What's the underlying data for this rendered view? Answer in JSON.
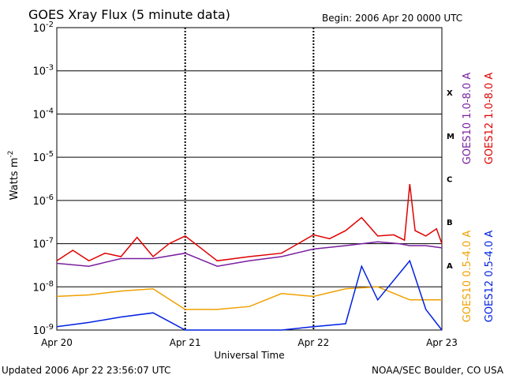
{
  "header": {
    "title": "GOES Xray Flux (5 minute data)",
    "begin": "Begin:  2006 Apr 20 0000 UTC"
  },
  "footer": {
    "updated": "Updated 2006 Apr 22 23:56:07 UTC",
    "source": "NOAA/SEC Boulder, CO USA"
  },
  "chart_data": {
    "type": "line",
    "title": "GOES Xray Flux (5 minute data)",
    "xlabel": "Universal Time",
    "ylabel": "Watts m-2",
    "y_scale": "log",
    "ylim": [
      1e-09,
      0.01
    ],
    "y_ticks": [
      {
        "base": "10",
        "exp": "-2"
      },
      {
        "base": "10",
        "exp": "-3"
      },
      {
        "base": "10",
        "exp": "-4"
      },
      {
        "base": "10",
        "exp": "-5"
      },
      {
        "base": "10",
        "exp": "-6"
      },
      {
        "base": "10",
        "exp": "-7"
      },
      {
        "base": "10",
        "exp": "-8"
      },
      {
        "base": "10",
        "exp": "-9"
      }
    ],
    "x_ticks": [
      "Apr 20",
      "Apr 21",
      "Apr 22",
      "Apr 23"
    ],
    "flare_classes": [
      "X",
      "M",
      "C",
      "B",
      "A"
    ],
    "grid": true,
    "legend_placement": "right",
    "series": [
      {
        "name": "GOES10 1.0-8.0 A",
        "color": "#7a1fa0",
        "x": [
          "2006-04-20 00:00",
          "2006-04-20 06:00",
          "2006-04-20 12:00",
          "2006-04-20 18:00",
          "2006-04-21 00:00",
          "2006-04-21 06:00",
          "2006-04-21 12:00",
          "2006-04-21 18:00",
          "2006-04-22 00:00",
          "2006-04-22 06:00",
          "2006-04-22 12:00",
          "2006-04-22 16:00",
          "2006-04-22 18:00",
          "2006-04-22 21:00",
          "2006-04-23 00:00"
        ],
        "y": [
          3.5e-08,
          3e-08,
          4.5e-08,
          4.5e-08,
          6e-08,
          3e-08,
          4e-08,
          5e-08,
          7.5e-08,
          9e-08,
          1.1e-07,
          1e-07,
          9e-08,
          9e-08,
          8e-08
        ]
      },
      {
        "name": "GOES12 1.0-8.0 A",
        "color": "#e00000",
        "x": [
          "2006-04-20 00:00",
          "2006-04-20 03:00",
          "2006-04-20 06:00",
          "2006-04-20 09:00",
          "2006-04-20 12:00",
          "2006-04-20 15:00",
          "2006-04-20 18:00",
          "2006-04-20 21:00",
          "2006-04-21 00:00",
          "2006-04-21 06:00",
          "2006-04-21 12:00",
          "2006-04-21 18:00",
          "2006-04-22 00:00",
          "2006-04-22 03:00",
          "2006-04-22 06:00",
          "2006-04-22 09:00",
          "2006-04-22 12:00",
          "2006-04-22 15:00",
          "2006-04-22 17:00",
          "2006-04-22 18:00",
          "2006-04-22 19:00",
          "2006-04-22 21:00",
          "2006-04-22 23:00",
          "2006-04-23 00:00"
        ],
        "y": [
          4e-08,
          7e-08,
          4e-08,
          6e-08,
          5e-08,
          1.4e-07,
          5e-08,
          1e-07,
          1.5e-07,
          4e-08,
          5e-08,
          6e-08,
          1.6e-07,
          1.3e-07,
          2e-07,
          4e-07,
          1.5e-07,
          1.6e-07,
          1.2e-07,
          2.4e-06,
          2e-07,
          1.5e-07,
          2.2e-07,
          1e-07
        ]
      },
      {
        "name": "GOES10 0.5-4.0 A",
        "color": "#f0a000",
        "x": [
          "2006-04-20 00:00",
          "2006-04-20 06:00",
          "2006-04-20 12:00",
          "2006-04-20 18:00",
          "2006-04-21 00:00",
          "2006-04-21 06:00",
          "2006-04-21 12:00",
          "2006-04-21 18:00",
          "2006-04-22 00:00",
          "2006-04-22 06:00",
          "2006-04-22 12:00",
          "2006-04-22 18:00",
          "2006-04-23 00:00"
        ],
        "y": [
          6e-09,
          6.5e-09,
          8e-09,
          9e-09,
          3e-09,
          3e-09,
          3.5e-09,
          7e-09,
          6e-09,
          9e-09,
          1e-08,
          5e-09,
          5e-09
        ]
      },
      {
        "name": "GOES12 0.5-4.0 A",
        "color": "#0020e0",
        "x": [
          "2006-04-20 00:00",
          "2006-04-20 06:00",
          "2006-04-20 12:00",
          "2006-04-20 18:00",
          "2006-04-21 00:00",
          "2006-04-21 06:00",
          "2006-04-21 12:00",
          "2006-04-21 18:00",
          "2006-04-22 00:00",
          "2006-04-22 06:00",
          "2006-04-22 09:00",
          "2006-04-22 12:00",
          "2006-04-22 18:00",
          "2006-04-22 21:00",
          "2006-04-23 00:00"
        ],
        "y": [
          1.2e-09,
          1.5e-09,
          2e-09,
          2.5e-09,
          1e-09,
          1e-09,
          1e-09,
          1e-09,
          1.2e-09,
          1.4e-09,
          3e-08,
          5e-09,
          4e-08,
          3e-09,
          1e-09
        ]
      }
    ]
  }
}
